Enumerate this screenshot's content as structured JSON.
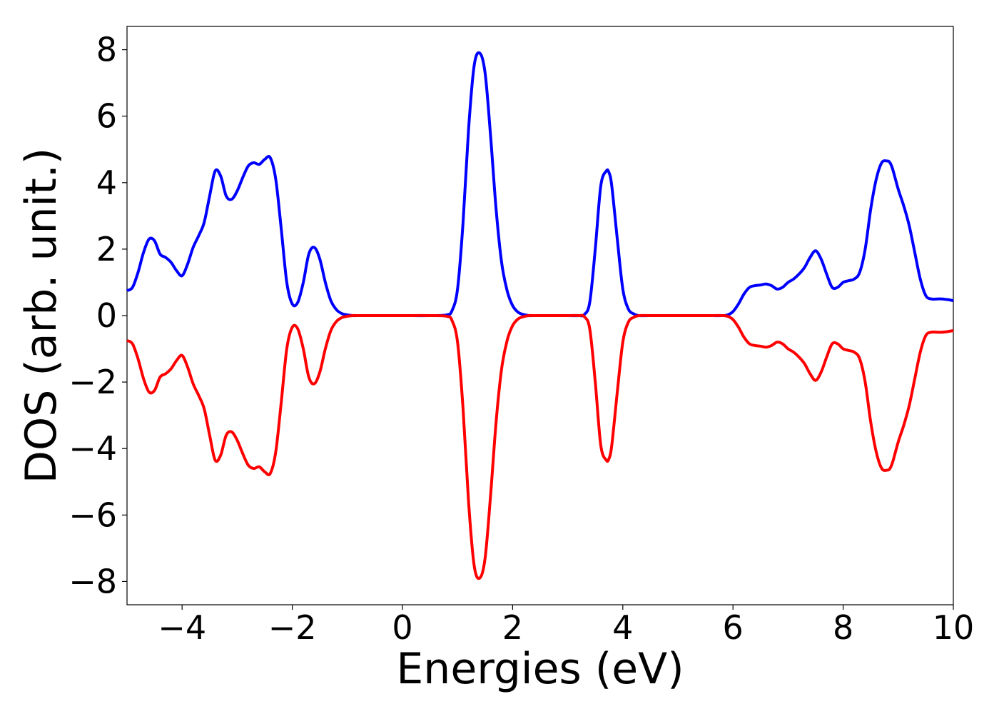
{
  "chart_data": {
    "type": "line",
    "title": "",
    "xlabel": "Energies (eV)",
    "ylabel": "DOS (arb. unit.)",
    "xlim": [
      -5,
      10
    ],
    "ylim": [
      -8.7,
      8.7
    ],
    "x_ticks": [
      -4,
      -2,
      0,
      2,
      4,
      6,
      8,
      10
    ],
    "x_tick_labels": [
      "−4",
      "−2",
      "0",
      "2",
      "4",
      "6",
      "8",
      "10"
    ],
    "y_ticks": [
      8,
      6,
      4,
      2,
      0,
      -2,
      -4,
      -6,
      -8
    ],
    "y_tick_labels": [
      "8",
      "6",
      "4",
      "2",
      "0",
      "−2",
      "−4",
      "−6",
      "−8"
    ],
    "grid": false,
    "legend": "none",
    "series": [
      {
        "color": "#0000ff",
        "x": [
          -5.0,
          -4.9,
          -4.8,
          -4.7,
          -4.6,
          -4.5,
          -4.4,
          -4.3,
          -4.2,
          -4.1,
          -4.0,
          -3.9,
          -3.8,
          -3.7,
          -3.6,
          -3.5,
          -3.4,
          -3.3,
          -3.2,
          -3.1,
          -3.0,
          -2.9,
          -2.8,
          -2.7,
          -2.6,
          -2.5,
          -2.4,
          -2.3,
          -2.2,
          -2.1,
          -2.0,
          -1.9,
          -1.8,
          -1.7,
          -1.6,
          -1.5,
          -1.4,
          -1.3,
          -1.2,
          -1.1,
          -1.0,
          -0.9,
          -0.8,
          -0.7,
          -0.6,
          -0.5,
          0.0,
          0.5,
          0.8,
          0.9,
          1.0,
          1.1,
          1.2,
          1.3,
          1.4,
          1.5,
          1.6,
          1.7,
          1.8,
          1.9,
          2.0,
          2.1,
          2.2,
          2.3,
          2.4,
          2.5,
          3.0,
          3.2,
          3.3,
          3.4,
          3.5,
          3.6,
          3.7,
          3.75,
          3.8,
          3.9,
          4.0,
          4.1,
          4.2,
          4.3,
          4.5,
          5.0,
          5.5,
          5.8,
          5.9,
          6.0,
          6.1,
          6.2,
          6.3,
          6.4,
          6.5,
          6.6,
          6.7,
          6.8,
          6.9,
          7.0,
          7.1,
          7.2,
          7.3,
          7.4,
          7.5,
          7.6,
          7.7,
          7.8,
          7.9,
          8.0,
          8.1,
          8.2,
          8.3,
          8.4,
          8.5,
          8.6,
          8.7,
          8.8,
          8.85,
          8.9,
          9.0,
          9.1,
          9.2,
          9.3,
          9.4,
          9.5,
          9.6,
          9.7,
          9.8,
          9.9,
          10.0
        ],
        "values": [
          0.75,
          0.85,
          1.3,
          1.9,
          2.3,
          2.25,
          1.85,
          1.75,
          1.6,
          1.35,
          1.2,
          1.55,
          2.05,
          2.4,
          2.8,
          3.6,
          4.35,
          4.2,
          3.6,
          3.5,
          3.75,
          4.15,
          4.5,
          4.6,
          4.55,
          4.7,
          4.75,
          4.1,
          2.6,
          1.0,
          0.35,
          0.4,
          1.0,
          1.85,
          2.05,
          1.7,
          1.0,
          0.45,
          0.18,
          0.06,
          0.02,
          0.0,
          0.0,
          0.0,
          0.0,
          0.0,
          0.0,
          0.0,
          0.02,
          0.15,
          0.8,
          2.8,
          5.6,
          7.5,
          7.9,
          7.3,
          5.4,
          3.2,
          1.6,
          0.75,
          0.3,
          0.1,
          0.03,
          0.0,
          0.0,
          0.0,
          0.0,
          0.0,
          0.03,
          0.4,
          2.0,
          3.9,
          4.35,
          4.3,
          3.9,
          2.3,
          0.8,
          0.2,
          0.05,
          0.0,
          0.0,
          0.0,
          0.0,
          0.0,
          0.02,
          0.12,
          0.35,
          0.65,
          0.85,
          0.9,
          0.92,
          0.95,
          0.9,
          0.8,
          0.85,
          1.0,
          1.1,
          1.25,
          1.45,
          1.75,
          1.95,
          1.7,
          1.25,
          0.85,
          0.85,
          1.0,
          1.05,
          1.1,
          1.3,
          2.0,
          3.2,
          4.1,
          4.6,
          4.65,
          4.6,
          4.4,
          3.8,
          3.3,
          2.7,
          1.9,
          1.1,
          0.6,
          0.5,
          0.5,
          0.5,
          0.48,
          0.45
        ]
      },
      {
        "color": "#ff0000",
        "x": [
          -5.0,
          -4.9,
          -4.8,
          -4.7,
          -4.6,
          -4.5,
          -4.4,
          -4.3,
          -4.2,
          -4.1,
          -4.0,
          -3.9,
          -3.8,
          -3.7,
          -3.6,
          -3.5,
          -3.4,
          -3.3,
          -3.2,
          -3.1,
          -3.0,
          -2.9,
          -2.8,
          -2.7,
          -2.6,
          -2.5,
          -2.4,
          -2.3,
          -2.2,
          -2.1,
          -2.0,
          -1.9,
          -1.8,
          -1.7,
          -1.6,
          -1.5,
          -1.4,
          -1.3,
          -1.2,
          -1.1,
          -1.0,
          -0.9,
          -0.8,
          -0.7,
          -0.6,
          -0.5,
          0.0,
          0.5,
          0.8,
          0.9,
          1.0,
          1.1,
          1.2,
          1.3,
          1.4,
          1.5,
          1.6,
          1.7,
          1.8,
          1.9,
          2.0,
          2.1,
          2.2,
          2.3,
          2.4,
          2.5,
          3.0,
          3.2,
          3.3,
          3.4,
          3.5,
          3.6,
          3.7,
          3.75,
          3.8,
          3.9,
          4.0,
          4.1,
          4.2,
          4.3,
          4.5,
          5.0,
          5.5,
          5.8,
          5.9,
          6.0,
          6.1,
          6.2,
          6.3,
          6.4,
          6.5,
          6.6,
          6.7,
          6.8,
          6.9,
          7.0,
          7.1,
          7.2,
          7.3,
          7.4,
          7.5,
          7.6,
          7.7,
          7.8,
          7.9,
          8.0,
          8.1,
          8.2,
          8.3,
          8.4,
          8.5,
          8.6,
          8.7,
          8.8,
          8.85,
          8.9,
          9.0,
          9.1,
          9.2,
          9.3,
          9.4,
          9.5,
          9.6,
          9.7,
          9.8,
          9.9,
          10.0
        ],
        "values": [
          -0.75,
          -0.85,
          -1.3,
          -1.9,
          -2.3,
          -2.25,
          -1.85,
          -1.75,
          -1.6,
          -1.35,
          -1.2,
          -1.55,
          -2.05,
          -2.4,
          -2.8,
          -3.6,
          -4.35,
          -4.2,
          -3.6,
          -3.5,
          -3.75,
          -4.15,
          -4.5,
          -4.6,
          -4.55,
          -4.7,
          -4.75,
          -4.1,
          -2.6,
          -1.0,
          -0.35,
          -0.4,
          -1.0,
          -1.85,
          -2.05,
          -1.7,
          -1.0,
          -0.45,
          -0.18,
          -0.06,
          -0.02,
          0.0,
          0.0,
          0.0,
          0.0,
          0.0,
          0.0,
          0.0,
          -0.02,
          -0.15,
          -0.8,
          -2.8,
          -5.6,
          -7.5,
          -7.9,
          -7.3,
          -5.4,
          -3.2,
          -1.6,
          -0.75,
          -0.3,
          -0.1,
          -0.03,
          0.0,
          0.0,
          0.0,
          0.0,
          0.0,
          -0.03,
          -0.4,
          -2.0,
          -3.9,
          -4.35,
          -4.3,
          -3.9,
          -2.3,
          -0.8,
          -0.2,
          -0.05,
          0.0,
          0.0,
          0.0,
          0.0,
          0.0,
          -0.02,
          -0.12,
          -0.35,
          -0.65,
          -0.85,
          -0.9,
          -0.92,
          -0.95,
          -0.9,
          -0.8,
          -0.85,
          -1.0,
          -1.1,
          -1.25,
          -1.45,
          -1.75,
          -1.95,
          -1.7,
          -1.25,
          -0.85,
          -0.85,
          -1.0,
          -1.05,
          -1.1,
          -1.3,
          -2.0,
          -3.2,
          -4.1,
          -4.6,
          -4.65,
          -4.6,
          -4.4,
          -3.8,
          -3.3,
          -2.7,
          -1.9,
          -1.1,
          -0.6,
          -0.5,
          -0.5,
          -0.5,
          -0.48,
          -0.45
        ]
      }
    ]
  }
}
